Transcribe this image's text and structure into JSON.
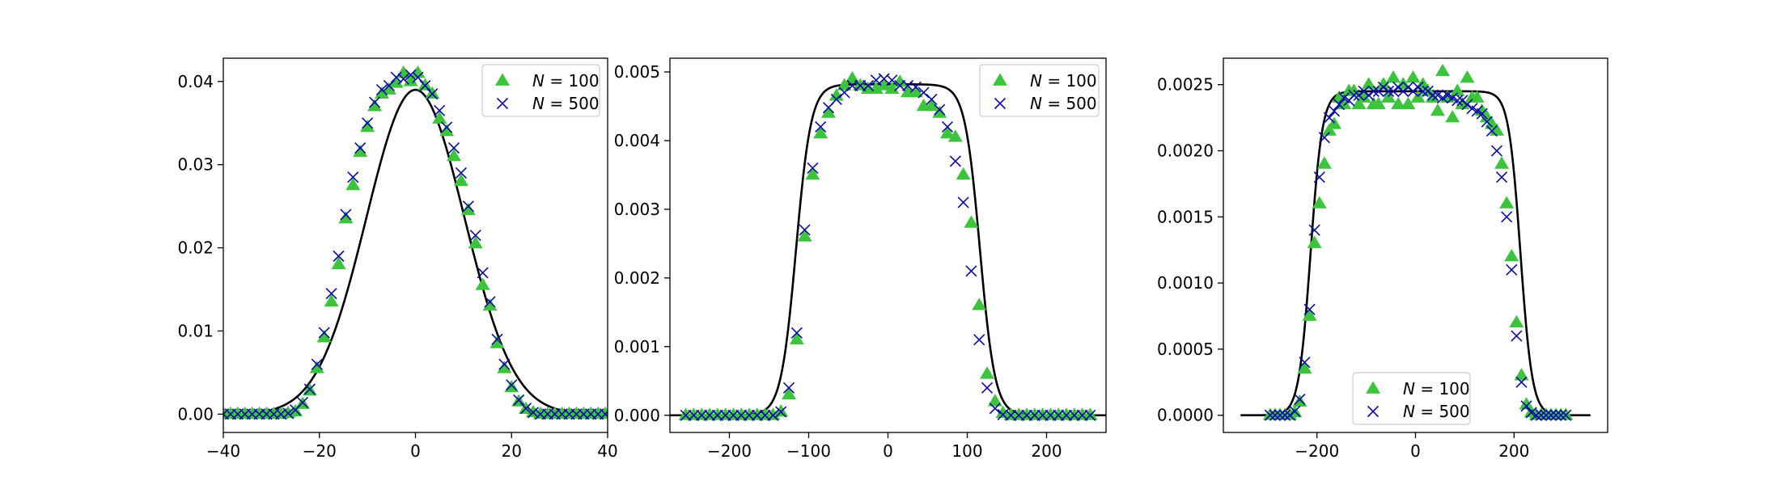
{
  "colors": {
    "triangle": "#3cc43c",
    "cross": "#0a0aa8",
    "curve": "#000000",
    "legend_border": "#cccccc"
  },
  "chart_data": [
    {
      "type": "scatter",
      "xlim": [
        -40,
        40
      ],
      "ylim": [
        -0.0022,
        0.0428
      ],
      "xticks": [
        -40,
        -20,
        0,
        20,
        40
      ],
      "yticks": [
        0.0,
        0.01,
        0.02,
        0.03,
        0.04
      ],
      "xtick_labels": [
        "−40",
        "−20",
        "0",
        "20",
        "40"
      ],
      "ytick_labels": [
        "0.00",
        "0.01",
        "0.02",
        "0.03",
        "0.04"
      ],
      "legend_position": "top-right",
      "curve": {
        "shape": "gaussian",
        "amplitude": 0.039,
        "sigma": 10.2
      },
      "series": [
        {
          "name": "N = 100",
          "marker": "triangle",
          "x": [
            -40,
            -38.5,
            -37,
            -35.5,
            -34,
            -32.5,
            -31,
            -29.5,
            -28,
            -26.5,
            -25,
            -23.5,
            -22,
            -20.5,
            -19,
            -17.5,
            -16,
            -14.5,
            -13,
            -11.5,
            -10,
            -8.5,
            -7,
            -5.5,
            -4,
            -2.5,
            -1,
            0.5,
            2,
            3.5,
            5,
            6.5,
            8,
            9.5,
            11,
            12.5,
            14,
            15.5,
            17,
            18.5,
            20,
            21.5,
            23,
            24.5,
            26,
            27.5,
            29,
            30.5,
            32,
            33.5,
            35,
            36.5,
            38,
            39.5
          ],
          "y": [
            0,
            0,
            0,
            0,
            0,
            0,
            0,
            0,
            0,
            0.0001,
            0.0003,
            0.0012,
            0.0028,
            0.0055,
            0.0092,
            0.0135,
            0.018,
            0.0235,
            0.0275,
            0.0315,
            0.0345,
            0.037,
            0.0385,
            0.039,
            0.0398,
            0.041,
            0.04,
            0.041,
            0.0395,
            0.0385,
            0.0355,
            0.034,
            0.031,
            0.028,
            0.0245,
            0.0205,
            0.0155,
            0.013,
            0.0085,
            0.0055,
            0.0032,
            0.0015,
            0.0006,
            0.0002,
            0,
            0,
            0,
            0,
            0,
            0,
            0,
            0,
            0,
            0
          ]
        },
        {
          "name": "N = 500",
          "marker": "cross",
          "x": [
            -40,
            -38.5,
            -37,
            -35.5,
            -34,
            -32.5,
            -31,
            -29.5,
            -28,
            -26.5,
            -25,
            -23.5,
            -22,
            -20.5,
            -19,
            -17.5,
            -16,
            -14.5,
            -13,
            -11.5,
            -10,
            -8.5,
            -7,
            -5.5,
            -4,
            -2.5,
            -1,
            0.5,
            2,
            3.5,
            5,
            6.5,
            8,
            9.5,
            11,
            12.5,
            14,
            15.5,
            17,
            18.5,
            20,
            21.5,
            23,
            24.5,
            26,
            27.5,
            29,
            30.5,
            32,
            33.5,
            35,
            36.5,
            38,
            39.5
          ],
          "y": [
            0,
            0,
            0,
            0,
            0,
            0,
            0,
            0,
            0,
            0.0001,
            0.0005,
            0.0014,
            0.003,
            0.006,
            0.0098,
            0.0145,
            0.019,
            0.024,
            0.0285,
            0.032,
            0.035,
            0.0375,
            0.039,
            0.0395,
            0.0405,
            0.0403,
            0.0408,
            0.0405,
            0.0395,
            0.0385,
            0.0365,
            0.0345,
            0.032,
            0.029,
            0.025,
            0.0215,
            0.017,
            0.0135,
            0.009,
            0.006,
            0.0035,
            0.0017,
            0.0007,
            0.0002,
            0,
            0,
            0,
            0,
            0,
            0,
            0,
            0,
            0,
            0
          ]
        }
      ]
    },
    {
      "type": "scatter",
      "xlim": [
        -275,
        275
      ],
      "ylim": [
        -0.00025,
        0.0052
      ],
      "xticks": [
        -200,
        -100,
        0,
        100,
        200
      ],
      "yticks": [
        0.0,
        0.001,
        0.002,
        0.003,
        0.004,
        0.005
      ],
      "xtick_labels": [
        "−200",
        "−100",
        "0",
        "100",
        "200"
      ],
      "ytick_labels": [
        "0.000",
        "0.001",
        "0.002",
        "0.003",
        "0.004",
        "0.005"
      ],
      "legend_position": "top-right",
      "curve": {
        "shape": "flat-top",
        "amplitude": 0.00482,
        "edge": 116,
        "width": 9.5
      },
      "series": [
        {
          "name": "N = 100",
          "marker": "triangle",
          "x": [
            -255,
            -245,
            -235,
            -225,
            -215,
            -205,
            -195,
            -185,
            -175,
            -165,
            -155,
            -145,
            -135,
            -125,
            -115,
            -105,
            -95,
            -85,
            -75,
            -65,
            -55,
            -45,
            -35,
            -25,
            -15,
            -5,
            5,
            15,
            25,
            35,
            45,
            55,
            65,
            75,
            85,
            95,
            105,
            115,
            125,
            135,
            145,
            155,
            165,
            175,
            185,
            195,
            205,
            215,
            225,
            235,
            245,
            255
          ],
          "y": [
            0,
            0,
            0,
            0,
            0,
            0,
            0,
            0,
            0,
            0,
            0,
            0,
            5e-05,
            0.0003,
            0.0011,
            0.0026,
            0.0035,
            0.0041,
            0.0044,
            0.00465,
            0.0048,
            0.0049,
            0.0048,
            0.00475,
            0.00475,
            0.0048,
            0.00475,
            0.00485,
            0.0047,
            0.0047,
            0.0045,
            0.0045,
            0.0044,
            0.0041,
            0.00405,
            0.0035,
            0.0028,
            0.0016,
            0.0006,
            0.0002,
            3e-05,
            0,
            0,
            0,
            0,
            0,
            0,
            0,
            0,
            0,
            0,
            0
          ]
        },
        {
          "name": "N = 500",
          "marker": "cross",
          "x": [
            -255,
            -245,
            -235,
            -225,
            -215,
            -205,
            -195,
            -185,
            -175,
            -165,
            -155,
            -145,
            -135,
            -125,
            -115,
            -105,
            -95,
            -85,
            -75,
            -65,
            -55,
            -45,
            -35,
            -25,
            -15,
            -5,
            5,
            15,
            25,
            35,
            45,
            55,
            65,
            75,
            85,
            95,
            105,
            115,
            125,
            135,
            145,
            155,
            165,
            175,
            185,
            195,
            205,
            215,
            225,
            235,
            245,
            255
          ],
          "y": [
            0,
            0,
            0,
            0,
            0,
            0,
            0,
            0,
            0,
            0,
            0,
            0,
            5e-05,
            0.0004,
            0.0012,
            0.0027,
            0.0036,
            0.0042,
            0.00448,
            0.0046,
            0.0047,
            0.0048,
            0.0048,
            0.0048,
            0.00488,
            0.0049,
            0.00488,
            0.0048,
            0.0048,
            0.00478,
            0.0047,
            0.0046,
            0.00445,
            0.0042,
            0.0037,
            0.0031,
            0.0021,
            0.0011,
            0.0004,
            0.0001,
            1e-05,
            0,
            0,
            0,
            0,
            0,
            0,
            0,
            0,
            0,
            0,
            0
          ]
        }
      ]
    },
    {
      "type": "scatter",
      "xlim": [
        -390,
        390
      ],
      "ylim": [
        -0.00013,
        0.0027
      ],
      "xticks": [
        -200,
        0,
        200
      ],
      "yticks": [
        0.0,
        0.0005,
        0.001,
        0.0015,
        0.002,
        0.0025
      ],
      "xtick_labels": [
        "−200",
        "0",
        "200"
      ],
      "ytick_labels": [
        "0.0000",
        "0.0005",
        "0.0010",
        "0.0015",
        "0.0020",
        "0.0025"
      ],
      "legend_position": "bottom-center",
      "curve": {
        "shape": "flat-top",
        "amplitude": 0.00245,
        "edge": 213,
        "width": 12,
        "x_range": [
          -355,
          355
        ]
      },
      "series": [
        {
          "name": "N = 100",
          "marker": "triangle",
          "x": [
            -295,
            -285,
            -275,
            -265,
            -255,
            -245,
            -235,
            -225,
            -215,
            -205,
            -195,
            -185,
            -175,
            -165,
            -155,
            -145,
            -135,
            -125,
            -115,
            -105,
            -95,
            -85,
            -75,
            -65,
            -55,
            -45,
            -35,
            -25,
            -15,
            -5,
            5,
            15,
            25,
            35,
            45,
            55,
            65,
            75,
            85,
            95,
            105,
            115,
            125,
            135,
            145,
            155,
            165,
            175,
            185,
            195,
            205,
            215,
            225,
            235,
            245,
            255,
            265,
            275,
            285,
            295,
            305
          ],
          "y": [
            0,
            0,
            0,
            0,
            0,
            2e-05,
            0.0001,
            0.00035,
            0.00075,
            0.0013,
            0.0016,
            0.0019,
            0.00215,
            0.0022,
            0.0024,
            0.00235,
            0.00245,
            0.00245,
            0.00235,
            0.0024,
            0.0025,
            0.00235,
            0.00235,
            0.0025,
            0.0024,
            0.00255,
            0.00235,
            0.0025,
            0.00235,
            0.00255,
            0.0024,
            0.0025,
            0.00245,
            0.0024,
            0.0023,
            0.0026,
            0.0024,
            0.00225,
            0.00245,
            0.00235,
            0.00255,
            0.0024,
            0.0024,
            0.0023,
            0.00225,
            0.0022,
            0.00215,
            0.0019,
            0.0016,
            0.0012,
            0.0007,
            0.0003,
            8e-05,
            2e-05,
            0,
            0,
            0,
            0,
            0,
            0,
            0
          ],
          "name_display": "N = 100"
        },
        {
          "name": "N = 500",
          "marker": "cross",
          "x": [
            -295,
            -285,
            -275,
            -265,
            -255,
            -245,
            -235,
            -225,
            -215,
            -205,
            -195,
            -185,
            -175,
            -165,
            -155,
            -145,
            -135,
            -125,
            -115,
            -105,
            -95,
            -85,
            -75,
            -65,
            -55,
            -45,
            -35,
            -25,
            -15,
            -5,
            5,
            15,
            25,
            35,
            45,
            55,
            65,
            75,
            85,
            95,
            105,
            115,
            125,
            135,
            145,
            155,
            165,
            175,
            185,
            195,
            205,
            215,
            225,
            235,
            245,
            255,
            265,
            275,
            285,
            295,
            305
          ],
          "y": [
            0,
            0,
            0,
            0,
            0,
            3e-05,
            0.00012,
            0.0004,
            0.0008,
            0.0014,
            0.0018,
            0.0021,
            0.00225,
            0.0023,
            0.00235,
            0.0024,
            0.00238,
            0.00242,
            0.00242,
            0.00245,
            0.00242,
            0.00245,
            0.00245,
            0.00248,
            0.00245,
            0.00245,
            0.00248,
            0.00245,
            0.00248,
            0.00245,
            0.00248,
            0.00245,
            0.00245,
            0.00242,
            0.00242,
            0.0024,
            0.00242,
            0.0024,
            0.00238,
            0.00238,
            0.00235,
            0.00232,
            0.0023,
            0.00228,
            0.00222,
            0.00215,
            0.002,
            0.0018,
            0.0015,
            0.0011,
            0.0006,
            0.00025,
            7e-05,
            2e-05,
            0,
            0,
            0,
            0,
            0,
            0,
            0
          ]
        }
      ]
    }
  ]
}
